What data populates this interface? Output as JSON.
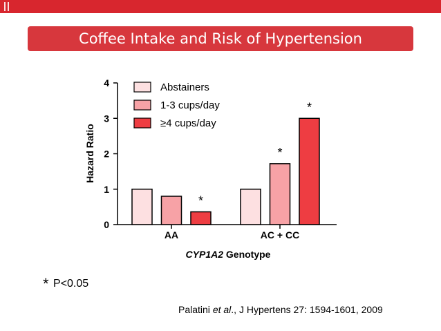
{
  "slide": {
    "title": "Coffee Intake and Risk of Hypertension",
    "footnote_symbol": "*",
    "footnote_text": "P<0.05",
    "citation_prefix": "Palatini ",
    "citation_italic": "et al",
    "citation_suffix": "., J Hypertens 27: 1594-1601, 2009"
  },
  "chart_data": {
    "type": "bar",
    "title": "",
    "ylabel": "Hazard Ratio",
    "xlabel_italic": "CYP1A2",
    "xlabel_rest": " Genotype",
    "categories": [
      "AA",
      "AC + CC"
    ],
    "ylim": [
      0,
      4
    ],
    "yticks": [
      "0",
      "1",
      "2",
      "3",
      "4"
    ],
    "legend_position": "top-left",
    "series": [
      {
        "name": "Abstainers",
        "color": "#fde0e1",
        "values": [
          1.0,
          1.0
        ],
        "annotations": [
          "",
          ""
        ]
      },
      {
        "name": "1-3 cups/day",
        "color": "#f7a2a6",
        "values": [
          0.8,
          1.72
        ],
        "annotations": [
          "",
          "*"
        ]
      },
      {
        "name": "≥4 cups/day",
        "color": "#ee3d42",
        "values": [
          0.36,
          3.0
        ],
        "annotations": [
          "*",
          "*"
        ]
      }
    ]
  }
}
